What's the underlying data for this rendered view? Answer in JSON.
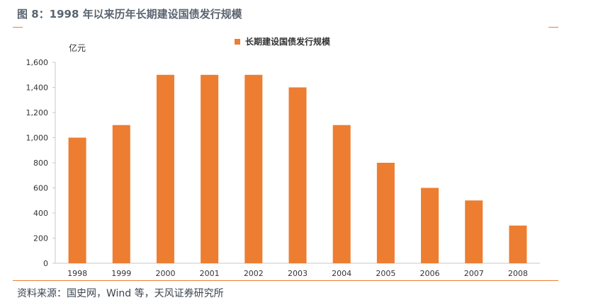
{
  "figure": {
    "title": "图 8：1998 年以来历年长期建设国债发行规模",
    "source": "资料来源：国史网，Wind 等，天风证券研究所"
  },
  "colors": {
    "bar": "#ed7d31",
    "title": "#5a6470",
    "rule": "#ed7d31"
  },
  "chart_data": {
    "type": "bar",
    "title": "",
    "xlabel": "",
    "ylabel": "亿元",
    "categories": [
      "1998",
      "1999",
      "2000",
      "2001",
      "2002",
      "2003",
      "2004",
      "2005",
      "2006",
      "2007",
      "2008"
    ],
    "series": [
      {
        "name": "长期建设国债发行规模",
        "values": [
          1000,
          1100,
          1500,
          1500,
          1500,
          1400,
          1100,
          800,
          600,
          500,
          300
        ]
      }
    ],
    "ylim": [
      0,
      1600
    ],
    "yticks": [
      0,
      200,
      400,
      600,
      800,
      1000,
      1200,
      1400,
      1600
    ],
    "ytick_labels": [
      "0",
      "200",
      "400",
      "600",
      "800",
      "1,000",
      "1,200",
      "1,400",
      "1,600"
    ],
    "grid": false,
    "legend_position": "top-center"
  }
}
